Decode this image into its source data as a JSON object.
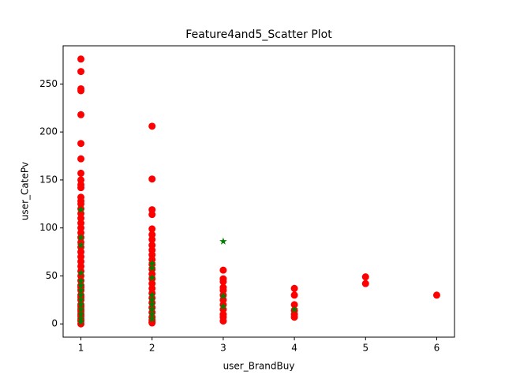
{
  "chart_data": {
    "type": "scatter",
    "title": "Feature4and5_Scatter Plot",
    "x_label": "user_BrandBuy",
    "y_label": "user_CatePv",
    "xlim": [
      0.75,
      6.25
    ],
    "ylim": [
      -13.8,
      289.8
    ],
    "xticks": [
      1,
      2,
      3,
      4,
      5,
      6
    ],
    "yticks": [
      0,
      50,
      100,
      150,
      200,
      250
    ],
    "grid": false,
    "series": [
      {
        "color": "#ff0000",
        "marker": "o",
        "x": [
          1,
          1,
          1,
          1,
          1,
          1,
          1,
          1,
          1,
          1,
          1,
          1,
          1,
          1,
          1,
          1,
          1,
          1,
          1,
          1,
          1,
          1,
          1,
          1,
          1,
          1,
          1,
          1,
          1,
          1,
          1,
          1,
          1,
          1,
          1,
          1,
          1,
          1,
          1,
          1,
          1,
          1,
          1,
          1,
          1,
          2,
          2,
          2,
          2,
          2,
          2,
          2,
          2,
          2,
          2,
          2,
          2,
          2,
          2,
          2,
          2,
          2,
          2,
          2,
          2,
          2,
          2,
          2,
          2,
          2,
          2,
          3,
          3,
          3,
          3,
          3,
          3,
          3,
          3,
          3,
          3,
          3,
          3,
          4,
          4,
          4,
          4,
          4,
          4,
          5,
          5,
          6
        ],
        "values": [
          276,
          263,
          245,
          243,
          218,
          188,
          172,
          157,
          150,
          145,
          142,
          132,
          128,
          125,
          120,
          115,
          110,
          105,
          100,
          95,
          90,
          85,
          80,
          75,
          70,
          65,
          60,
          55,
          50,
          45,
          40,
          35,
          30,
          25,
          20,
          15,
          10,
          5,
          0,
          3,
          8,
          13,
          18,
          28,
          38,
          206,
          151,
          119,
          114,
          99,
          93,
          88,
          82,
          77,
          72,
          67,
          62,
          57,
          52,
          47,
          42,
          37,
          32,
          27,
          22,
          17,
          12,
          7,
          2,
          4,
          1,
          56,
          47,
          44,
          38,
          35,
          30,
          25,
          20,
          15,
          10,
          7,
          3,
          37,
          30,
          20,
          14,
          10,
          7,
          49,
          42,
          30
        ]
      },
      {
        "color": "#008000",
        "marker": "*",
        "x": [
          1,
          1,
          1,
          1,
          1,
          1,
          1,
          1,
          1,
          1,
          1,
          1,
          1,
          1,
          2,
          2,
          2,
          2,
          2,
          2,
          2,
          2,
          2,
          3,
          3,
          3,
          4
        ],
        "values": [
          119,
          90,
          82,
          53,
          45,
          40,
          35,
          30,
          25,
          20,
          15,
          10,
          5,
          2,
          63,
          58,
          48,
          30,
          25,
          20,
          15,
          10,
          5,
          86,
          29,
          18,
          15
        ]
      }
    ]
  }
}
